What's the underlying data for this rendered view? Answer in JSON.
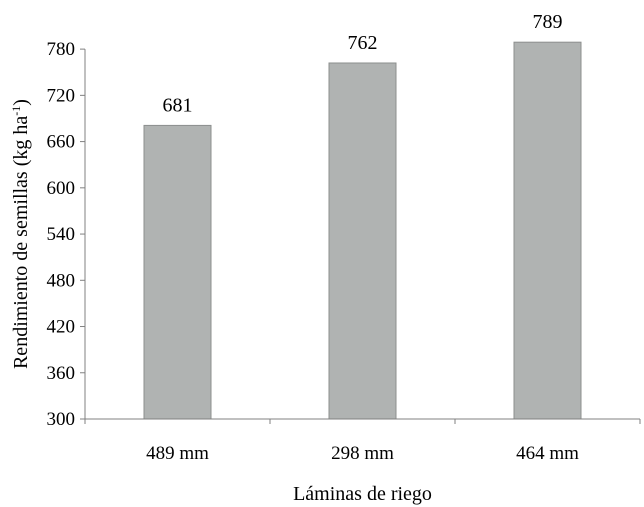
{
  "chart_data": {
    "type": "bar",
    "categories": [
      "489 mm",
      "298 mm",
      "464 mm"
    ],
    "values": [
      681,
      762,
      789
    ],
    "data_labels": [
      "681",
      "762",
      "789"
    ],
    "xlabel": "Láminas de riego",
    "ylabel_main": "Rendimiento  de semillas (kg ha",
    "ylabel_sup": "-1",
    "ylabel_tail": ")",
    "ylim": [
      300,
      810
    ],
    "yticks": [
      300,
      360,
      420,
      480,
      540,
      600,
      660,
      720,
      780
    ],
    "grid": false,
    "legend": "none",
    "bar_color": "#b0b3b2",
    "bar_edge_color": "#8c8f8e",
    "axis_color": "#808080"
  }
}
